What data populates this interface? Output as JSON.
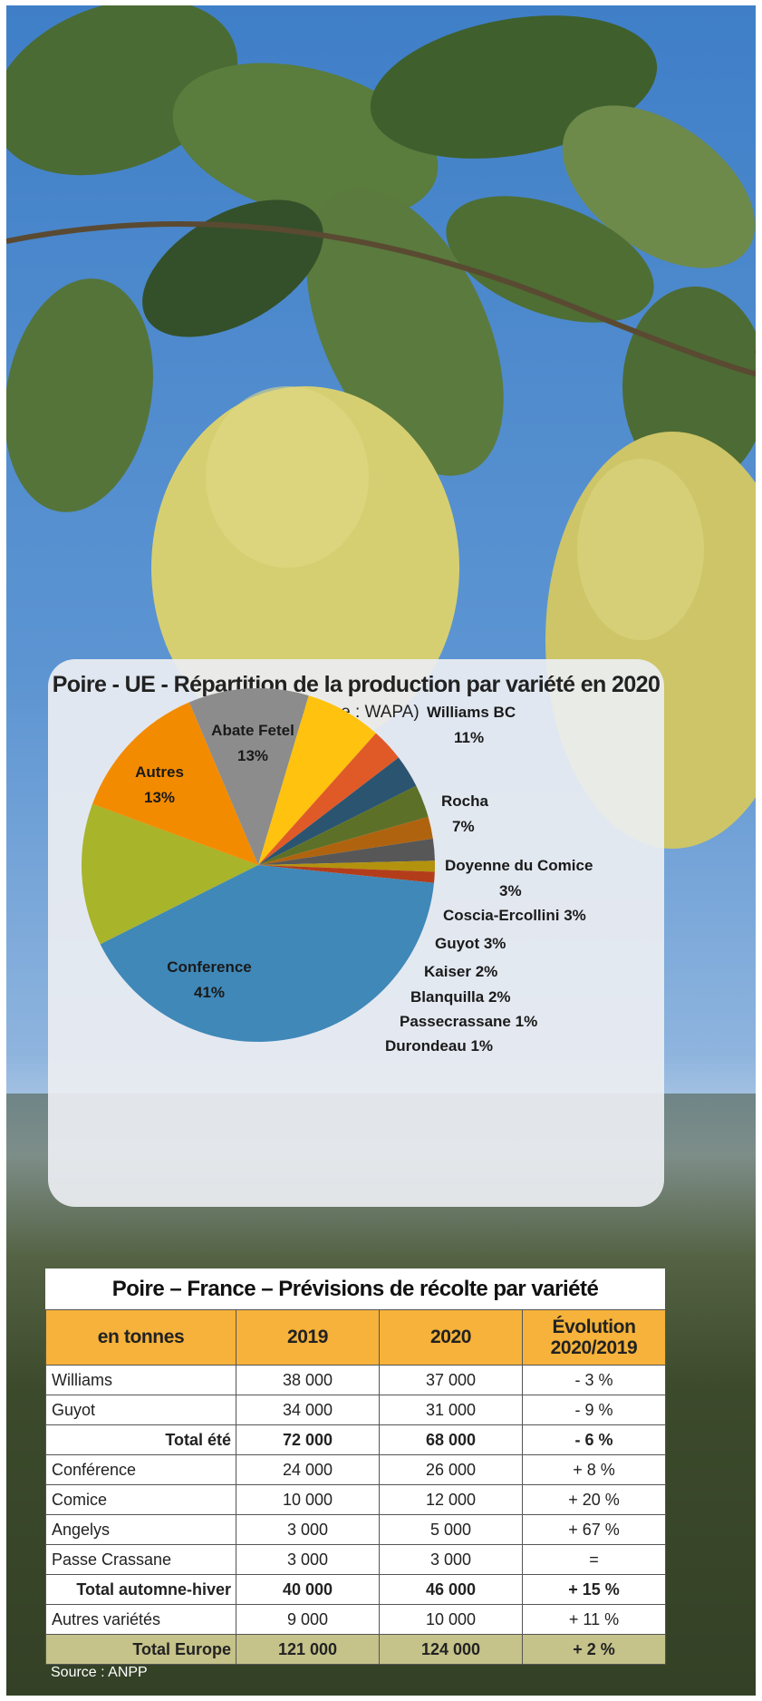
{
  "chart_data": {
    "type": "pie",
    "title": "Poire - UE - Répartition de la production par variété en 2020",
    "subtitle": "(source : WAPA)",
    "slices": [
      {
        "label": "Williams BC",
        "value": 11,
        "value_label": "11%",
        "color": "#8c8c8c"
      },
      {
        "label": "Rocha",
        "value": 7,
        "value_label": "7%",
        "color": "#ffc20e"
      },
      {
        "label": "Doyenne du Comice",
        "value": 3,
        "value_label": "3%",
        "color": "#e05a28"
      },
      {
        "label": "Coscia-Ercollini",
        "value": 3,
        "value_label": "3%",
        "color": "#2b5470"
      },
      {
        "label": "Guyot",
        "value": 3,
        "value_label": "3%",
        "color": "#5d7028"
      },
      {
        "label": "Kaiser",
        "value": 2,
        "value_label": "2%",
        "color": "#b0630f"
      },
      {
        "label": "Blanquilla",
        "value": 2,
        "value_label": "2%",
        "color": "#575757"
      },
      {
        "label": "Passecrassane",
        "value": 1,
        "value_label": "1%",
        "color": "#b3920e"
      },
      {
        "label": "Durondeau",
        "value": 1,
        "value_label": "1%",
        "color": "#b33d1b"
      },
      {
        "label": "Conference",
        "value": 41,
        "value_label": "41%",
        "color": "#3f88b8"
      },
      {
        "label": "Autres",
        "value": 13,
        "value_label": "13%",
        "color": "#a8b42a"
      },
      {
        "label": "Abate Fetel",
        "value": 13,
        "value_label": "13%",
        "color": "#f38b00"
      }
    ]
  },
  "table": {
    "title": "Poire – France – Prévisions de récolte par variété",
    "headers": [
      "en tonnes",
      "2019",
      "2020",
      "Évolution 2020/2019"
    ],
    "rows": [
      {
        "label": "Williams",
        "c2019": "38 000",
        "c2020": "37 000",
        "evo": "- 3 %",
        "kind": "row"
      },
      {
        "label": "Guyot",
        "c2019": "34 000",
        "c2020": "31 000",
        "evo": "- 9 %",
        "kind": "row"
      },
      {
        "label": "Total été",
        "c2019": "72 000",
        "c2020": "68 000",
        "evo": "- 6 %",
        "kind": "total"
      },
      {
        "label": "Conférence",
        "c2019": "24 000",
        "c2020": "26 000",
        "evo": "+ 8 %",
        "kind": "row"
      },
      {
        "label": "Comice",
        "c2019": "10 000",
        "c2020": "12 000",
        "evo": "+ 20 %",
        "kind": "row"
      },
      {
        "label": "Angelys",
        "c2019": "3 000",
        "c2020": "5 000",
        "evo": "+ 67 %",
        "kind": "row"
      },
      {
        "label": "Passe Crassane",
        "c2019": "3 000",
        "c2020": "3 000",
        "evo": "=",
        "kind": "row"
      },
      {
        "label": "Total automne-hiver",
        "c2019": "40 000",
        "c2020": "46 000",
        "evo": "+ 15 %",
        "kind": "total"
      },
      {
        "label": "Autres variétés",
        "c2019": "9 000",
        "c2020": "10 000",
        "evo": "+ 11 %",
        "kind": "row"
      },
      {
        "label": "Total Europe",
        "c2019": "121 000",
        "c2020": "124 000",
        "evo": "+ 2 %",
        "kind": "grand"
      }
    ],
    "source": "Source : ANPP"
  },
  "background": {
    "sky_color": "#3f7fc8",
    "pear_color": "#d6cf72",
    "leaf_color": "#3e5a2a"
  }
}
